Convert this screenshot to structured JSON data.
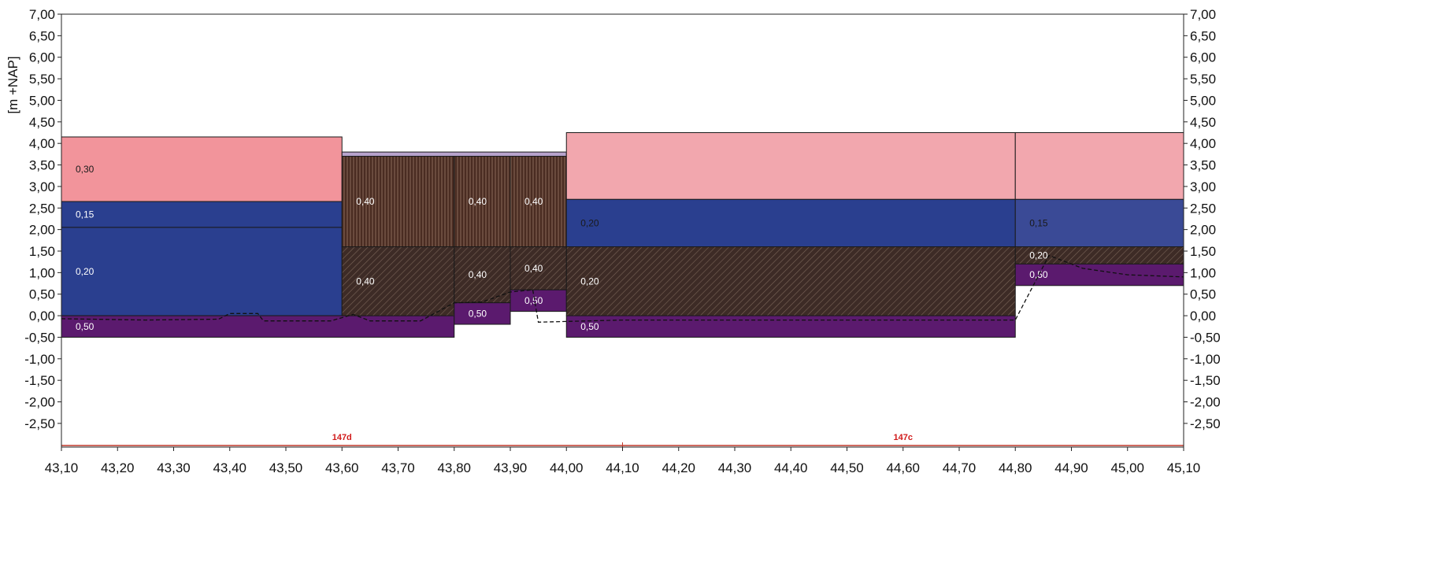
{
  "chart_data": {
    "type": "bar",
    "ylabel": "[m +NAP]",
    "xlim": [
      43.1,
      45.1
    ],
    "ylim": [
      -3.05,
      7.0
    ],
    "x_ticks": [
      "43,10",
      "43,20",
      "43,30",
      "43,40",
      "43,50",
      "43,60",
      "43,70",
      "43,80",
      "43,90",
      "44,00",
      "44,10",
      "44,20",
      "44,30",
      "44,40",
      "44,50",
      "44,60",
      "44,70",
      "44,80",
      "44,90",
      "45,00",
      "45,10"
    ],
    "y_ticks_left": [
      "7,00",
      "6,50",
      "6,00",
      "5,50",
      "5,00",
      "4,50",
      "4,00",
      "3,50",
      "3,00",
      "2,50",
      "2,00",
      "1,50",
      "1,00",
      "0,50",
      "0,00",
      "-0,50",
      "-1,00",
      "-1,50",
      "-2,00",
      "-2,50"
    ],
    "y_ticks_right": [
      "7,00",
      "6,50",
      "6,00",
      "5,50",
      "5,00",
      "4,50",
      "4,00",
      "3,50",
      "3,00",
      "2,50",
      "2,00",
      "1,50",
      "1,00",
      "0,50",
      "0,00",
      "-0,50",
      "-1,00",
      "-1,50",
      "-2,00",
      "-2,50"
    ],
    "layers": [
      {
        "x0": 43.1,
        "x1": 43.6,
        "y0": 2.65,
        "y1": 4.15,
        "fill": "#f2949b",
        "label": "0,30",
        "label_color": "#1a1a1a"
      },
      {
        "x0": 43.1,
        "x1": 43.6,
        "y0": 2.05,
        "y1": 2.65,
        "fill": "#2a3f8f",
        "label": "0,15",
        "label_color": "#ffffff"
      },
      {
        "x0": 43.1,
        "x1": 43.6,
        "y0": 0.0,
        "y1": 2.05,
        "fill": "#2a3f8f",
        "label": "0,20",
        "label_color": "#ffffff"
      },
      {
        "x0": 43.1,
        "x1": 43.8,
        "y0": -0.5,
        "y1": 0.0,
        "fill": "#5b1a6e",
        "label": "0,50",
        "label_color": "#ffffff"
      },
      {
        "x0": 43.6,
        "x1": 44.0,
        "y0": 3.7,
        "y1": 3.8,
        "fill": "#b7a2cc",
        "label": "",
        "label_color": "#ffffff"
      },
      {
        "x0": 43.6,
        "x1": 43.8,
        "y0": 1.6,
        "y1": 3.7,
        "fill": "#4a2c22",
        "pattern": "vert",
        "label": "0,40",
        "label_color": "#ffffff"
      },
      {
        "x0": 43.8,
        "x1": 43.9,
        "y0": 1.6,
        "y1": 3.7,
        "fill": "#4a2c22",
        "pattern": "vert",
        "label": "0,40",
        "label_color": "#ffffff"
      },
      {
        "x0": 43.9,
        "x1": 44.0,
        "y0": 1.6,
        "y1": 3.7,
        "fill": "#4a2c22",
        "pattern": "vert",
        "label": "0,40",
        "label_color": "#ffffff"
      },
      {
        "x0": 43.6,
        "x1": 43.8,
        "y0": 0.0,
        "y1": 1.6,
        "fill": "#3d2b26",
        "pattern": "diag",
        "label": "0,40",
        "label_color": "#ffffff"
      },
      {
        "x0": 43.8,
        "x1": 43.9,
        "y0": 0.3,
        "y1": 1.6,
        "fill": "#3d2b26",
        "pattern": "diag",
        "label": "0,40",
        "label_color": "#ffffff"
      },
      {
        "x0": 43.9,
        "x1": 44.0,
        "y0": 0.6,
        "y1": 1.6,
        "fill": "#3d2b26",
        "pattern": "diag",
        "label": "0,40",
        "label_color": "#ffffff"
      },
      {
        "x0": 43.8,
        "x1": 43.9,
        "y0": -0.2,
        "y1": 0.3,
        "fill": "#5b1a6e",
        "label": "0,50",
        "label_color": "#ffffff"
      },
      {
        "x0": 43.9,
        "x1": 44.0,
        "y0": 0.1,
        "y1": 0.6,
        "fill": "#5b1a6e",
        "label": "0,50",
        "label_color": "#ffffff"
      },
      {
        "x0": 44.0,
        "x1": 44.8,
        "y0": 2.7,
        "y1": 4.25,
        "fill": "#f2a7ae",
        "label": "",
        "label_color": "#1a1a1a"
      },
      {
        "x0": 44.0,
        "x1": 44.8,
        "y0": 1.6,
        "y1": 2.7,
        "fill": "#2a3f8f",
        "label": "0,20",
        "label_color": "#1a1a1a"
      },
      {
        "x0": 44.0,
        "x1": 44.8,
        "y0": 0.0,
        "y1": 1.6,
        "fill": "#3d2b26",
        "pattern": "diag",
        "label": "0,20",
        "label_color": "#ffffff"
      },
      {
        "x0": 44.0,
        "x1": 44.8,
        "y0": -0.5,
        "y1": 0.0,
        "fill": "#5b1a6e",
        "label": "0,50",
        "label_color": "#ffffff"
      },
      {
        "x0": 44.8,
        "x1": 45.1,
        "y0": 2.7,
        "y1": 4.25,
        "fill": "#f2a7ae",
        "label": "",
        "label_color": "#1a1a1a"
      },
      {
        "x0": 44.8,
        "x1": 45.1,
        "y0": 1.6,
        "y1": 2.7,
        "fill": "#3a4a96",
        "label": "0,15",
        "label_color": "#1a1a1a"
      },
      {
        "x0": 44.8,
        "x1": 45.1,
        "y0": 1.2,
        "y1": 1.6,
        "fill": "#3d2b26",
        "pattern": "diag",
        "label": "0,20",
        "label_color": "#ffffff"
      },
      {
        "x0": 44.8,
        "x1": 45.1,
        "y0": 0.7,
        "y1": 1.2,
        "fill": "#5b1a6e",
        "label": "0,50",
        "label_color": "#ffffff"
      }
    ],
    "segments": [
      {
        "label": "147d",
        "x0": 43.1,
        "x1": 44.1
      },
      {
        "label": "147c",
        "x0": 44.1,
        "x1": 45.1
      }
    ],
    "ground_line": [
      [
        43.1,
        -0.07
      ],
      [
        43.25,
        -0.1
      ],
      [
        43.38,
        -0.08
      ],
      [
        43.4,
        0.05
      ],
      [
        43.45,
        0.05
      ],
      [
        43.46,
        -0.12
      ],
      [
        43.58,
        -0.12
      ],
      [
        43.62,
        0.03
      ],
      [
        43.65,
        -0.12
      ],
      [
        43.74,
        -0.12
      ],
      [
        43.8,
        0.3
      ],
      [
        43.85,
        0.32
      ],
      [
        43.9,
        0.55
      ],
      [
        43.94,
        0.6
      ],
      [
        43.95,
        -0.15
      ],
      [
        44.1,
        -0.1
      ],
      [
        44.8,
        -0.1
      ],
      [
        44.86,
        1.4
      ],
      [
        44.92,
        1.1
      ],
      [
        45.0,
        0.95
      ],
      [
        45.1,
        0.9
      ]
    ]
  }
}
